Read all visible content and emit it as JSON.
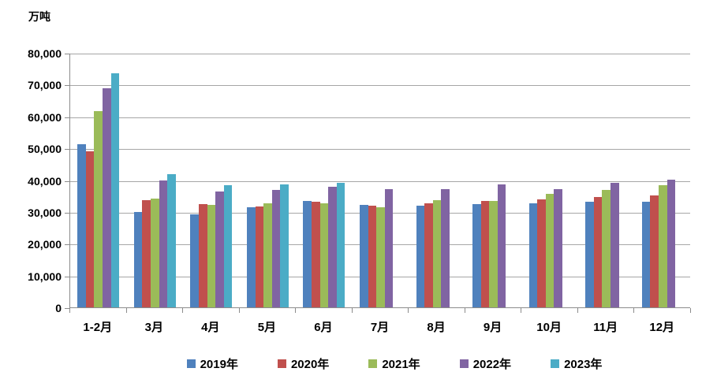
{
  "chart_data": {
    "type": "bar",
    "title": "",
    "ylabel": "万吨",
    "xlabel": "",
    "categories": [
      "1-2月",
      "3月",
      "4月",
      "5月",
      "6月",
      "7月",
      "8月",
      "9月",
      "10月",
      "11月",
      "12月"
    ],
    "series": [
      {
        "name": "2019年",
        "color": "#4F81BD",
        "values": [
          51300,
          30000,
          29300,
          31400,
          33400,
          32300,
          31900,
          32500,
          32700,
          33300,
          33300
        ]
      },
      {
        "name": "2020年",
        "color": "#C0504D",
        "values": [
          49100,
          33700,
          32400,
          31800,
          33300,
          31900,
          32600,
          33400,
          33900,
          34800,
          35100
        ]
      },
      {
        "name": "2021年",
        "color": "#9BBB59",
        "values": [
          61700,
          34200,
          32100,
          32600,
          32600,
          31400,
          33800,
          33500,
          35700,
          37000,
          38500
        ]
      },
      {
        "name": "2022年",
        "color": "#8064A2",
        "values": [
          68900,
          40000,
          36500,
          36800,
          38000,
          37100,
          37200,
          38600,
          37100,
          39100,
          40200
        ]
      },
      {
        "name": "2023年",
        "color": "#4BACC6",
        "values": [
          73500,
          41900,
          38400,
          38700,
          39200,
          null,
          null,
          null,
          null,
          null,
          null
        ]
      }
    ],
    "ylim": [
      0,
      80000
    ],
    "ytick_step": 10000,
    "ytick_labels": [
      "0",
      "10,000",
      "20,000",
      "30,000",
      "40,000",
      "50,000",
      "60,000",
      "70,000",
      "80,000"
    ],
    "grid": "horizontal",
    "gridline_color": "#A6A6A6",
    "axis_color": "#8C8C8C",
    "legend_position": "bottom"
  }
}
